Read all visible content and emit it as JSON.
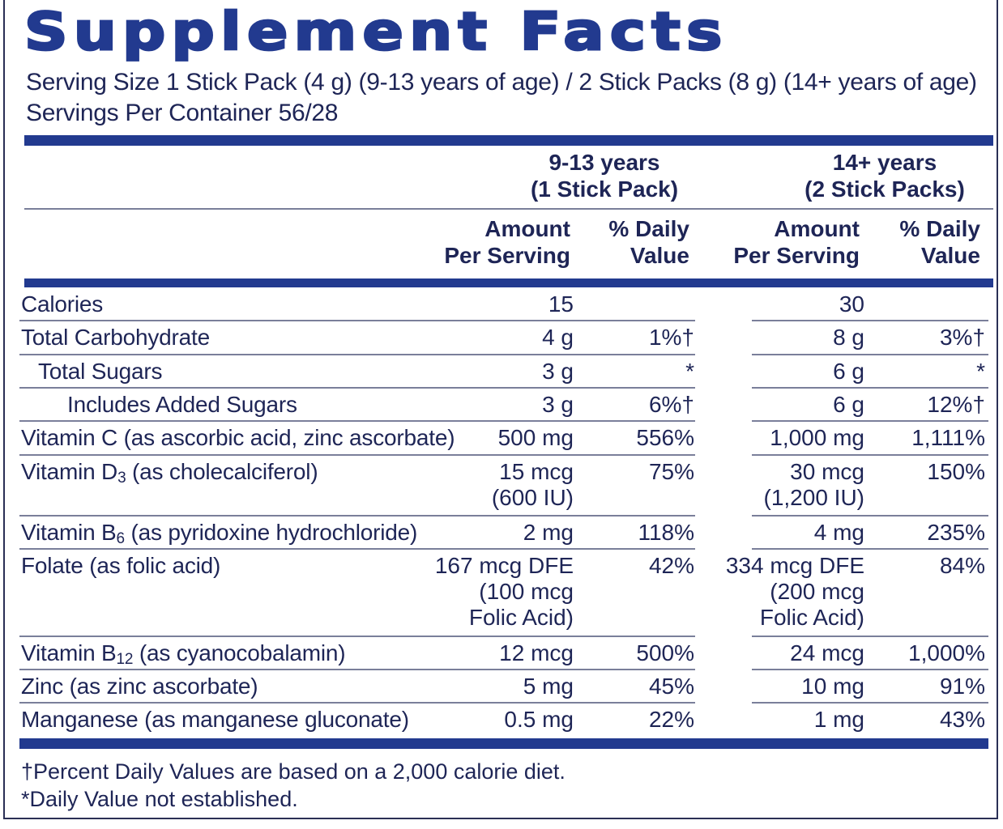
{
  "title": "Supplement Facts",
  "serving_size": "Serving Size 1 Stick Pack (4 g) (9-13 years of age) / 2 Stick Packs (8 g) (14+ years of age)",
  "servings_per_container": "Servings Per Container 56/28",
  "groups": [
    {
      "line1": "9-13 years",
      "line2": "(1 Stick Pack)"
    },
    {
      "line1": "14+ years",
      "line2": "(2 Stick Packs)"
    }
  ],
  "col_headers": {
    "amount_line1": "Amount",
    "amount_line2": "Per Serving",
    "dv_line1": "% Daily",
    "dv_line2": "Value"
  },
  "rows": [
    {
      "name": "Calories",
      "a1": "15",
      "d1": "",
      "a2": "30",
      "d2": ""
    },
    {
      "name": "Total Carbohydrate",
      "a1": "4 g",
      "d1": "1%†",
      "a2": "8 g",
      "d2": "3%†"
    },
    {
      "name": "Total Sugars",
      "a1": "3 g",
      "d1": "*",
      "a2": "6 g",
      "d2": "*"
    },
    {
      "name": "Includes Added Sugars",
      "a1": "3 g",
      "d1": "6%†",
      "a2": "6 g",
      "d2": "12%†"
    },
    {
      "name": "Vitamin C (as ascorbic acid, zinc ascorbate)",
      "a1": "500 mg",
      "d1": "556%",
      "a2": "1,000 mg",
      "d2": "1,111%"
    },
    {
      "name_pre": "Vitamin D",
      "name_sub": "3",
      "name_post": " (as cholecalciferol)",
      "a1_l1": "15 mcg",
      "a1_l2": "(600 IU)",
      "d1": "75%",
      "a2_l1": "30 mcg",
      "a2_l2": "(1,200 IU)",
      "d2": "150%"
    },
    {
      "name_pre": "Vitamin B",
      "name_sub": "6",
      "name_post": " (as pyridoxine hydrochloride)",
      "a1": "2 mg",
      "d1": "118%",
      "a2": "4 mg",
      "d2": "235%"
    },
    {
      "name": "Folate (as folic acid)",
      "a1_l1": "167 mcg DFE",
      "a1_l2": "(100 mcg",
      "a1_l3": "Folic Acid)",
      "d1": "42%",
      "a2_l1": "334 mcg DFE",
      "a2_l2": "(200 mcg",
      "a2_l3": "Folic Acid)",
      "d2": "84%"
    },
    {
      "name_pre": "Vitamin B",
      "name_sub": "12",
      "name_post": " (as cyanocobalamin)",
      "a1": "12 mcg",
      "d1": "500%",
      "a2": "24 mcg",
      "d2": "1,000%"
    },
    {
      "name": "Zinc (as zinc ascorbate)",
      "a1": "5 mg",
      "d1": "45%",
      "a2": "10 mg",
      "d2": "91%"
    },
    {
      "name": "Manganese (as manganese gluconate)",
      "a1": "0.5 mg",
      "d1": "22%",
      "a2": "1 mg",
      "d2": "43%"
    }
  ],
  "footnotes": [
    "†Percent Daily Values are based on a 2,000 calorie diet.",
    "*Daily Value not established."
  ],
  "colors": {
    "brand_blue": "#223a8f",
    "text": "#1e2556",
    "rule": "#7a7f9a"
  }
}
